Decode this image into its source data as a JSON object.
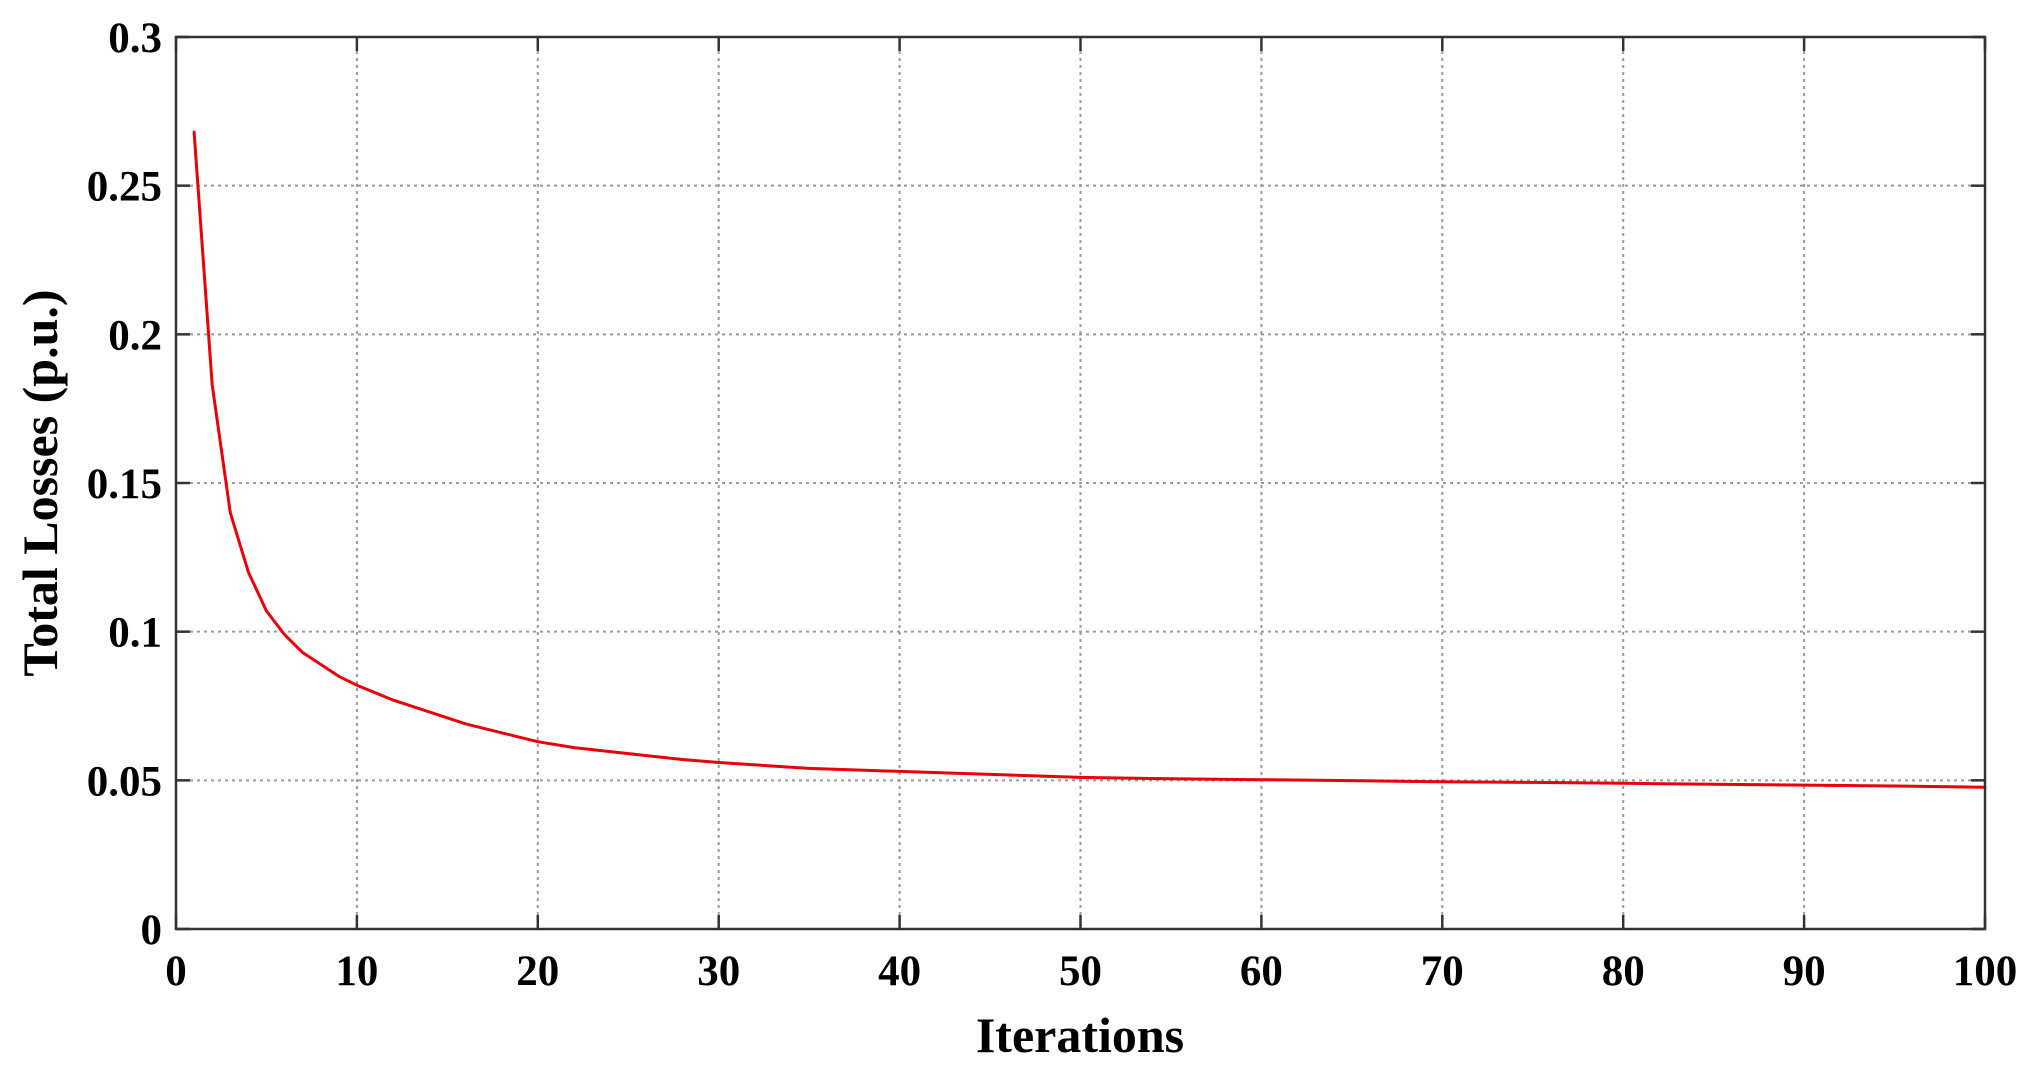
{
  "chart_data": {
    "type": "line",
    "title": "",
    "xlabel": "Iterations",
    "ylabel": "Total Losses (p.u.)",
    "xlim": [
      0,
      100
    ],
    "ylim": [
      0,
      0.3
    ],
    "xticks": [
      0,
      10,
      20,
      30,
      40,
      50,
      60,
      70,
      80,
      90,
      100
    ],
    "yticks": [
      0,
      0.05,
      0.1,
      0.15,
      0.2,
      0.25,
      0.3
    ],
    "xtick_labels": [
      "0",
      "10",
      "20",
      "30",
      "40",
      "50",
      "60",
      "70",
      "80",
      "90",
      "100"
    ],
    "ytick_labels": [
      "0",
      "0.05",
      "0.1",
      "0.15",
      "0.2",
      "0.25",
      "0.3"
    ],
    "grid": true,
    "legend": "none",
    "series": [
      {
        "color": "#e8000b",
        "x": [
          1,
          2,
          3,
          4,
          5,
          6,
          7,
          8,
          9,
          10,
          12,
          14,
          16,
          18,
          20,
          22,
          25,
          28,
          30,
          35,
          40,
          45,
          50,
          55,
          60,
          65,
          70,
          75,
          80,
          85,
          90,
          95,
          100
        ],
        "y": [
          0.268,
          0.183,
          0.14,
          0.12,
          0.107,
          0.099,
          0.093,
          0.089,
          0.085,
          0.082,
          0.077,
          0.073,
          0.069,
          0.066,
          0.063,
          0.061,
          0.059,
          0.057,
          0.056,
          0.054,
          0.053,
          0.052,
          0.051,
          0.0505,
          0.0502,
          0.0499,
          0.0495,
          0.0493,
          0.049,
          0.0487,
          0.0484,
          0.0481,
          0.0477
        ]
      }
    ]
  }
}
